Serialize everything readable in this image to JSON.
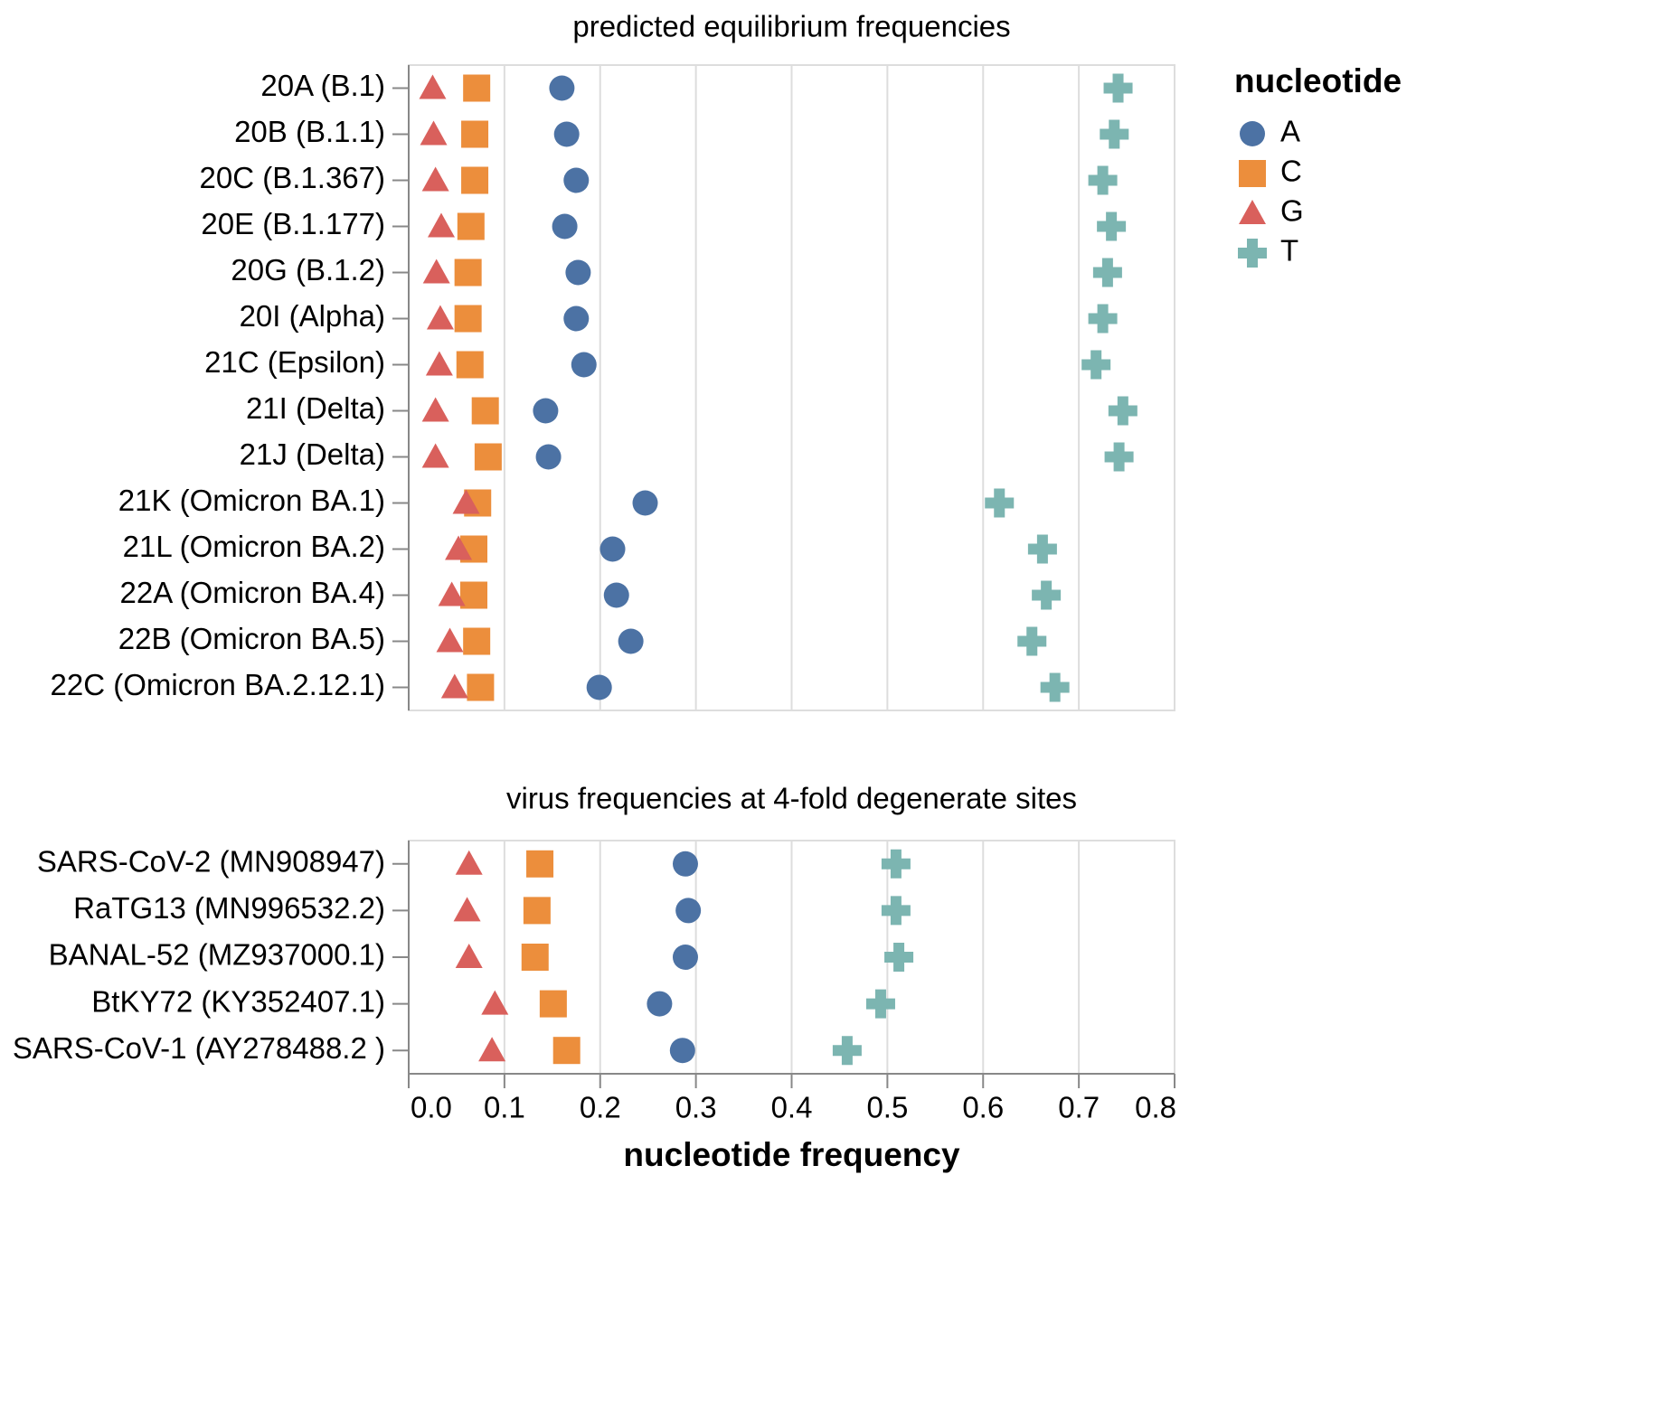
{
  "chart_data": [
    {
      "type": "scatter",
      "title": "predicted equilibrium frequencies",
      "xlim": [
        0.0,
        0.8
      ],
      "grid": true,
      "categories": [
        "20A (B.1)",
        "20B (B.1.1)",
        "20C (B.1.367)",
        "20E (B.1.177)",
        "20G (B.1.2)",
        "20I (Alpha)",
        "21C (Epsilon)",
        "21I (Delta)",
        "21J (Delta)",
        "21K (Omicron BA.1)",
        "21L (Omicron BA.2)",
        "22A (Omicron BA.4)",
        "22B (Omicron BA.5)",
        "22C (Omicron BA.2.12.1)"
      ],
      "series": [
        {
          "name": "A",
          "values": [
            0.16,
            0.165,
            0.175,
            0.163,
            0.177,
            0.175,
            0.183,
            0.143,
            0.146,
            0.247,
            0.213,
            0.217,
            0.232,
            0.199
          ]
        },
        {
          "name": "C",
          "values": [
            0.071,
            0.069,
            0.069,
            0.065,
            0.062,
            0.062,
            0.064,
            0.08,
            0.083,
            0.072,
            0.068,
            0.068,
            0.071,
            0.075
          ]
        },
        {
          "name": "G",
          "values": [
            0.025,
            0.026,
            0.028,
            0.034,
            0.029,
            0.033,
            0.032,
            0.028,
            0.028,
            0.06,
            0.052,
            0.045,
            0.043,
            0.048
          ]
        },
        {
          "name": "T",
          "values": [
            0.741,
            0.737,
            0.725,
            0.734,
            0.73,
            0.725,
            0.718,
            0.746,
            0.742,
            0.617,
            0.662,
            0.666,
            0.651,
            0.675
          ]
        }
      ]
    },
    {
      "type": "scatter",
      "title": "virus frequencies at 4-fold degenerate sites",
      "xlim": [
        0.0,
        0.8
      ],
      "grid": true,
      "xlabel": "nucleotide frequency",
      "xticks": [
        "0.0",
        "0.1",
        "0.2",
        "0.3",
        "0.4",
        "0.5",
        "0.6",
        "0.7",
        "0.8"
      ],
      "categories": [
        "SARS-CoV-2 (MN908947)",
        "RaTG13 (MN996532.2)",
        "BANAL-52 (MZ937000.1)",
        "BtKY72 (KY352407.1)",
        "SARS-CoV-1 (AY278488.2 )"
      ],
      "series": [
        {
          "name": "A",
          "values": [
            0.289,
            0.292,
            0.289,
            0.262,
            0.286
          ]
        },
        {
          "name": "C",
          "values": [
            0.137,
            0.134,
            0.132,
            0.151,
            0.165
          ]
        },
        {
          "name": "G",
          "values": [
            0.063,
            0.061,
            0.063,
            0.09,
            0.087
          ]
        },
        {
          "name": "T",
          "values": [
            0.509,
            0.509,
            0.512,
            0.493,
            0.458
          ]
        }
      ]
    }
  ],
  "legend": {
    "title": "nucleotide",
    "placement": "top-right",
    "items": [
      {
        "label": "A",
        "shape": "circle",
        "color": "#4c72a4"
      },
      {
        "label": "C",
        "shape": "square",
        "color": "#ec8e3c"
      },
      {
        "label": "G",
        "shape": "triangle",
        "color": "#d9605c"
      },
      {
        "label": "T",
        "shape": "cross",
        "color": "#7cb5b1"
      }
    ]
  }
}
